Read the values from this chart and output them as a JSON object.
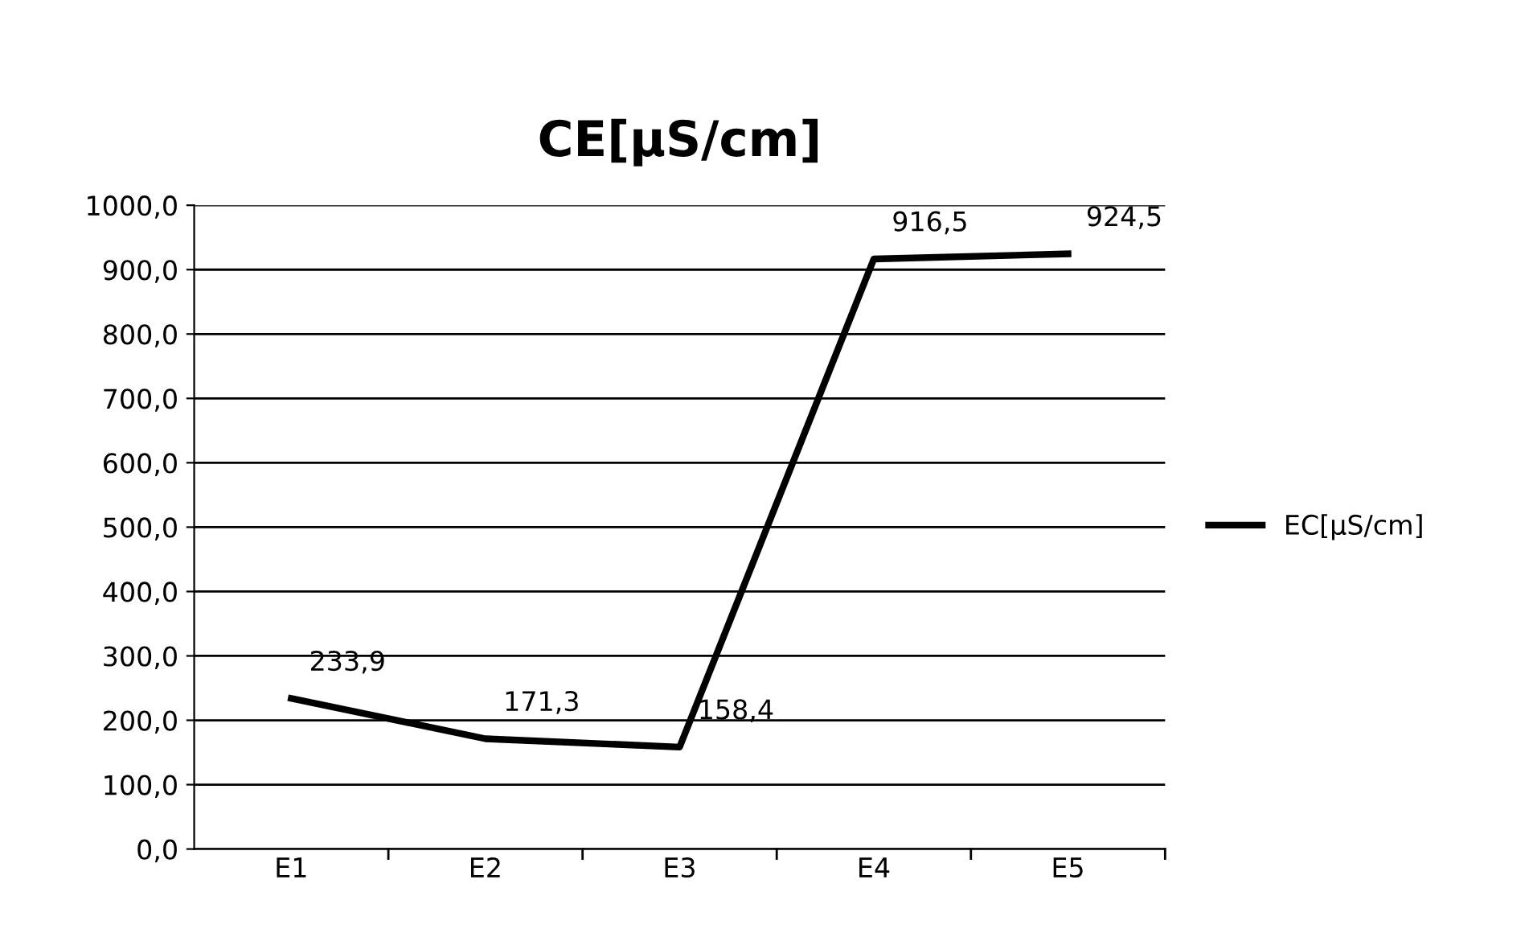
{
  "chart_data": {
    "type": "line",
    "title": "CE[µS/cm]",
    "categories": [
      "E1",
      "E2",
      "E3",
      "E4",
      "E5"
    ],
    "series": [
      {
        "name": "EC[µS/cm]",
        "color": "#000000",
        "values": [
          233.9,
          171.3,
          158.4,
          916.5,
          924.5
        ],
        "value_labels": [
          "233,9",
          "171,3",
          "158,4",
          "916,5",
          "924,5"
        ]
      }
    ],
    "ylim": [
      0,
      1000
    ],
    "yticks": [
      {
        "value": 0,
        "label": "0,0"
      },
      {
        "value": 100,
        "label": "100,0"
      },
      {
        "value": 200,
        "label": "200,0"
      },
      {
        "value": 300,
        "label": "300,0"
      },
      {
        "value": 400,
        "label": "400,0"
      },
      {
        "value": 500,
        "label": "500,0"
      },
      {
        "value": 600,
        "label": "600,0"
      },
      {
        "value": 700,
        "label": "700,0"
      },
      {
        "value": 800,
        "label": "800,0"
      },
      {
        "value": 900,
        "label": "900,0"
      },
      {
        "value": 1000,
        "label": "1000,0"
      }
    ],
    "grid": "y",
    "legend": "right",
    "marker": "none",
    "line_style": "solid"
  }
}
